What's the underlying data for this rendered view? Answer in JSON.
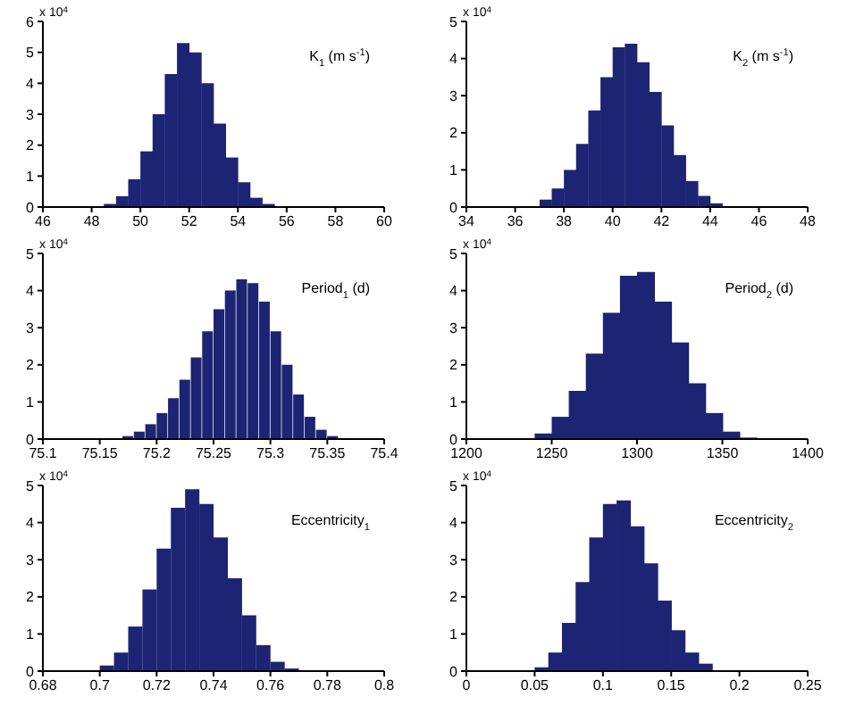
{
  "chart_data": [
    {
      "type": "histogram",
      "title": "K$_{1}$ (m s$^{-1}$)",
      "annotations": [
        "x 10$^{4}$"
      ],
      "color": "#1c2473",
      "xlim": [
        46,
        60
      ],
      "xticks": [
        46,
        48,
        50,
        52,
        54,
        56,
        58,
        60
      ],
      "ylim": [
        0,
        6
      ],
      "yticks": [
        0,
        1,
        2,
        3,
        4,
        5,
        6
      ],
      "bins": [
        48,
        48.5,
        49,
        49.5,
        50,
        50.5,
        51,
        51.5,
        52,
        52.5,
        53,
        53.5,
        54,
        54.5,
        55,
        55.5,
        56
      ],
      "values": [
        0.01,
        0.1,
        0.35,
        0.9,
        1.8,
        3.0,
        4.3,
        5.3,
        5.0,
        4.0,
        2.7,
        1.6,
        0.8,
        0.3,
        0.1,
        0.02
      ]
    },
    {
      "type": "histogram",
      "title": "K$_{2}$ (m s$^{-1}$)",
      "annotations": [
        "x 10$^{4}$"
      ],
      "color": "#1c2473",
      "xlim": [
        34,
        48
      ],
      "xticks": [
        34,
        36,
        38,
        40,
        42,
        44,
        46,
        48
      ],
      "ylim": [
        0,
        5
      ],
      "yticks": [
        0,
        1,
        2,
        3,
        4,
        5
      ],
      "bins": [
        36,
        36.5,
        37,
        37.5,
        38,
        38.5,
        39,
        39.5,
        40,
        40.5,
        41,
        41.5,
        42,
        42.5,
        43,
        43.5,
        44,
        44.5,
        45,
        45.5,
        46
      ],
      "values": [
        0.01,
        null,
        0.2,
        0.5,
        1.0,
        1.7,
        2.6,
        3.5,
        4.3,
        4.4,
        3.9,
        3.1,
        2.2,
        1.4,
        0.7,
        0.3,
        0.1,
        null,
        0.01,
        0
      ]
    },
    {
      "type": "histogram",
      "title": "Period$_{1}$ (d)",
      "annotations": [
        "x 10$^{4}$"
      ],
      "color": "#1c2473",
      "xlim": [
        75.1,
        75.4
      ],
      "xticks": [
        75.1,
        75.15,
        75.2,
        75.25,
        75.3,
        75.35,
        75.4
      ],
      "ylim": [
        0,
        5
      ],
      "yticks": [
        0,
        1,
        2,
        3,
        4,
        5
      ],
      "bins": [
        75.15,
        75.16,
        75.17,
        75.18,
        75.19,
        75.2,
        75.21,
        75.22,
        75.23,
        75.24,
        75.25,
        75.26,
        75.27,
        75.28,
        75.29,
        75.3,
        75.31,
        75.32,
        75.33,
        75.34,
        75.35,
        75.36,
        75.37
      ],
      "values": [
        0.01,
        null,
        0.08,
        0.2,
        0.4,
        0.7,
        1.1,
        1.6,
        2.2,
        2.9,
        3.5,
        4.0,
        4.3,
        4.2,
        3.7,
        2.9,
        2.0,
        1.2,
        0.6,
        0.25,
        0.08,
        0.02
      ]
    },
    {
      "type": "histogram",
      "title": "Period$_{2}$ (d)",
      "annotations": [
        "x 10$^{4}$"
      ],
      "color": "#1c2473",
      "xlim": [
        1200,
        1400
      ],
      "xticks": [
        1200,
        1250,
        1300,
        1350,
        1400
      ],
      "ylim": [
        0,
        5
      ],
      "yticks": [
        0,
        1,
        2,
        3,
        4,
        5
      ],
      "bins": [
        1230,
        1240,
        1250,
        1260,
        1270,
        1280,
        1290,
        1300,
        1310,
        1320,
        1330,
        1340,
        1350,
        1360,
        1370
      ],
      "values": [
        0.02,
        0.15,
        0.6,
        1.3,
        2.3,
        3.4,
        4.4,
        4.5,
        3.7,
        2.6,
        1.5,
        0.7,
        0.2,
        0.04
      ]
    },
    {
      "type": "histogram",
      "title": "Eccentricity$_{1}$",
      "annotations": [
        "x 10$^{4}$"
      ],
      "color": "#1c2473",
      "xlim": [
        0.68,
        0.8
      ],
      "xticks": [
        0.68,
        0.7,
        0.72,
        0.74,
        0.76,
        0.78,
        0.8
      ],
      "ylim": [
        0,
        5
      ],
      "yticks": [
        0,
        1,
        2,
        3,
        4,
        5
      ],
      "bins": [
        0.695,
        0.7,
        0.705,
        0.71,
        0.715,
        0.72,
        0.725,
        0.73,
        0.735,
        0.74,
        0.745,
        0.75,
        0.755,
        0.76,
        0.765,
        0.77,
        0.775
      ],
      "values": [
        0.02,
        0.15,
        0.5,
        1.2,
        2.2,
        3.3,
        4.4,
        4.9,
        4.5,
        3.6,
        2.5,
        1.5,
        0.7,
        0.25,
        0.07,
        0.01
      ]
    },
    {
      "type": "histogram",
      "title": "Eccentricity$_{2}$",
      "annotations": [
        "x 10$^{4}$"
      ],
      "color": "#1c2473",
      "xlim": [
        0,
        0.25
      ],
      "xticks": [
        0,
        0.05,
        0.1,
        0.15,
        0.2,
        0.25
      ],
      "ylim": [
        0,
        5
      ],
      "yticks": [
        0,
        1,
        2,
        3,
        4,
        5
      ],
      "bins": [
        0.04,
        0.05,
        0.06,
        0.07,
        0.08,
        0.09,
        0.1,
        0.11,
        0.12,
        0.13,
        0.14,
        0.15,
        0.16,
        0.17,
        0.18,
        0.19,
        0.2
      ],
      "values": [
        0.01,
        0.1,
        0.5,
        1.3,
        2.4,
        3.6,
        4.5,
        4.6,
        3.9,
        2.9,
        1.9,
        1.1,
        0.5,
        0.2,
        null,
        0.01
      ]
    }
  ]
}
